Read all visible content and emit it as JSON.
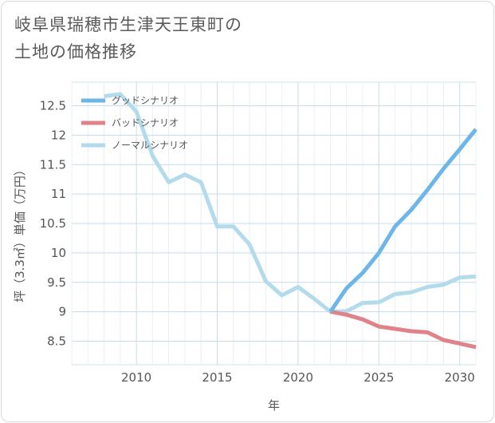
{
  "title_line1": "岐阜県瑞穂市生津天王東町の",
  "title_line2": "土地の価格推移",
  "chart_data": {
    "type": "line",
    "xlabel": "年",
    "ylabel": "坪（3.3㎡）単価（万円）",
    "xlim": [
      2006,
      2031
    ],
    "ylim": [
      8.1,
      12.9
    ],
    "xticks": [
      2010,
      2015,
      2020,
      2025,
      2030
    ],
    "yticks": [
      8.5,
      9,
      9.5,
      10,
      10.5,
      11,
      11.5,
      12,
      12.5
    ],
    "grid": true,
    "legend_position": "top-left",
    "series": [
      {
        "name": "グッドシナリオ",
        "color": "#6cb6ea",
        "x": [
          2022,
          2023,
          2024,
          2025,
          2026,
          2027,
          2028,
          2029,
          2030,
          2031
        ],
        "y": [
          9.0,
          9.4,
          9.66,
          10.0,
          10.45,
          10.73,
          11.07,
          11.43,
          11.76,
          12.1
        ]
      },
      {
        "name": "バッドシナリオ",
        "color": "#e0828a",
        "x": [
          2022,
          2023,
          2024,
          2025,
          2026,
          2027,
          2028,
          2029,
          2030,
          2031
        ],
        "y": [
          9.0,
          8.95,
          8.87,
          8.75,
          8.71,
          8.67,
          8.65,
          8.52,
          8.46,
          8.4
        ]
      },
      {
        "name": "ノーマルシナリオ",
        "color": "#b4dbec",
        "x": [
          2008,
          2009,
          2010,
          2011,
          2012,
          2013,
          2014,
          2015,
          2016,
          2017,
          2018,
          2019,
          2020,
          2021,
          2022,
          2023,
          2024,
          2025,
          2026,
          2027,
          2028,
          2029,
          2030,
          2031
        ],
        "y": [
          12.66,
          12.7,
          12.4,
          11.65,
          11.2,
          11.33,
          11.2,
          10.45,
          10.45,
          10.14,
          9.52,
          9.28,
          9.42,
          9.22,
          9.0,
          9.01,
          9.15,
          9.16,
          9.3,
          9.33,
          9.42,
          9.46,
          9.58,
          9.6
        ]
      }
    ]
  }
}
